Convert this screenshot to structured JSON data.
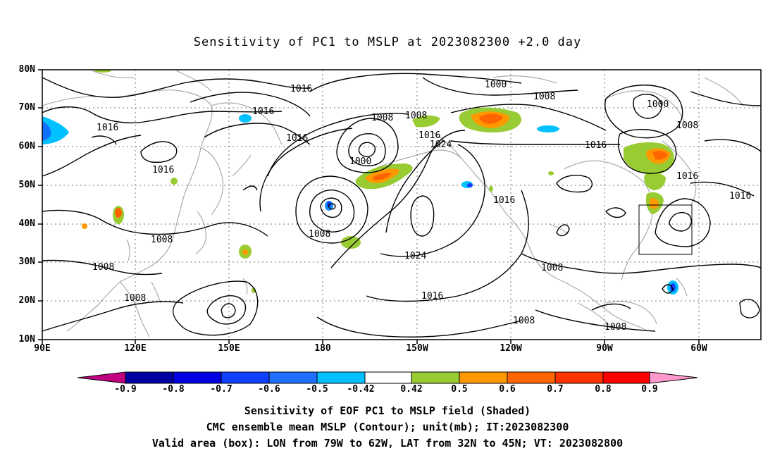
{
  "title": "Sensitivity of PC1 to MSLP at 2023082300 +2.0 day",
  "lat_labels": [
    "80N",
    "70N",
    "60N",
    "50N",
    "40N",
    "30N",
    "20N",
    "10N"
  ],
  "lon_labels": [
    "90E",
    "120E",
    "150E",
    "180",
    "150W",
    "120W",
    "90W",
    "60W"
  ],
  "contour_labels": {
    "c1": "1016",
    "c2": "1016",
    "c3": "1016",
    "c4": "1016",
    "c5": "1016",
    "c6": "1008",
    "c7": "1008",
    "c8": "1008",
    "c9": "1008",
    "c10": "1008",
    "c11": "1000",
    "c12": "1016",
    "c13": "1024",
    "c14": "1008",
    "c15": "1024",
    "c16": "1016",
    "c17": "1016",
    "c18": "1000",
    "c19": "1008",
    "c20": "1000",
    "c21": "1008",
    "c22": "1016",
    "c23": "1016",
    "c24": "1016",
    "c25": "1008",
    "c26": "1008",
    "c27": "1008"
  },
  "colorbar": {
    "labels": [
      "-0.9",
      "-0.8",
      "-0.7",
      "-0.6",
      "-0.5",
      "-0.42",
      "0.42",
      "0.5",
      "0.6",
      "0.7",
      "0.8",
      "0.9"
    ],
    "colors": [
      "#c00080",
      "#0000a0",
      "#0000e0",
      "#1040ff",
      "#2070ff",
      "#1090ff",
      "#00c0ff",
      "#ffffff",
      "#99cc33",
      "#ff9900",
      "#ff6600",
      "#ff3300",
      "#ff0000",
      "#ff99cc"
    ]
  },
  "captions": {
    "line1": "Sensitivity of EOF PC1 to MSLP field (Shaded)",
    "line2": "CMC ensemble mean MSLP (Contour); unit(mb); IT:2023082300",
    "line3": "Valid area (box): LON from 79W to 62W, LAT from 32N to 45N; VT: 2023082800"
  },
  "valid_box": {
    "lon_west": -79,
    "lon_east": -62,
    "lat_south": 32,
    "lat_north": 45
  }
}
